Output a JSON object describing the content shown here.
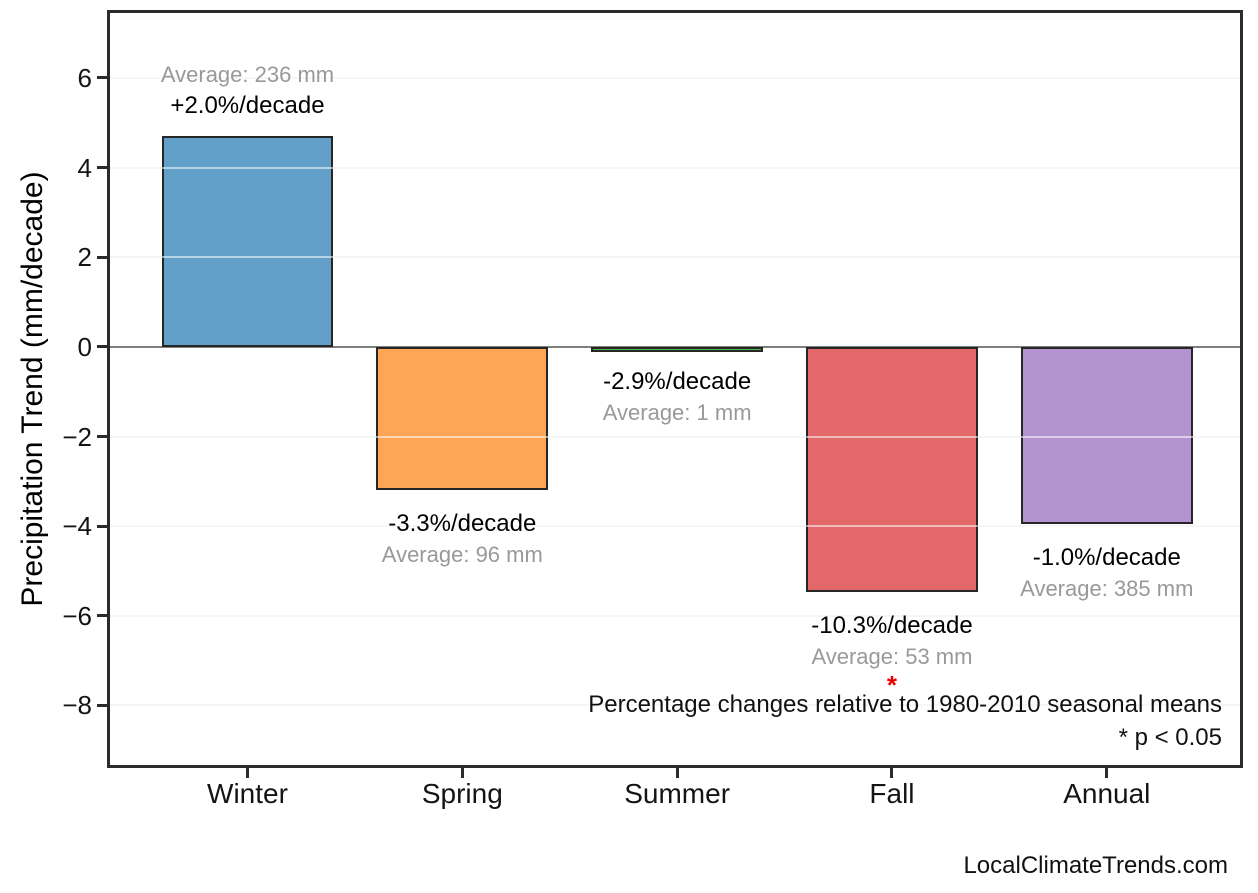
{
  "chart_data": {
    "type": "bar",
    "title": "",
    "xlabel": "",
    "ylabel": "Precipitation Trend (mm/decade)",
    "categories": [
      "Winter",
      "Spring",
      "Summer",
      "Fall",
      "Annual"
    ],
    "values": [
      4.71,
      -3.2,
      -0.03,
      -5.47,
      -3.96
    ],
    "bar_colors": [
      "#62A0CA",
      "#FFA556",
      "#4FBC4F",
      "#E26869",
      "#B494D0"
    ],
    "bar_edge_color": "#262626",
    "ylim": [
      -9.33,
      7.45
    ],
    "xlim": [
      -0.64,
      4.62
    ],
    "bar_width": 0.8,
    "yticks": [
      6,
      4,
      2,
      0,
      -2,
      -4,
      -6,
      -8
    ],
    "ytick_labels": [
      "6",
      "4",
      "2",
      "0",
      "−2",
      "−4",
      "−6",
      "−8"
    ],
    "grid": "horizontal",
    "legend": "none",
    "zero_line_color": "#7f7f7f",
    "annotations": [
      {
        "category": "Winter",
        "trend_label": "+2.0%/decade",
        "average_label": "Average: 236 mm",
        "position": "above",
        "significant": false
      },
      {
        "category": "Spring",
        "trend_label": "-3.3%/decade",
        "average_label": "Average: 96 mm",
        "position": "below",
        "significant": false
      },
      {
        "category": "Summer",
        "trend_label": "-2.9%/decade",
        "average_label": "Average: 1 mm",
        "position": "below",
        "significant": false
      },
      {
        "category": "Fall",
        "trend_label": "-10.3%/decade",
        "average_label": "Average: 53 mm",
        "position": "below",
        "significant": true
      },
      {
        "category": "Annual",
        "trend_label": "-1.0%/decade",
        "average_label": "Average: 385 mm",
        "position": "below",
        "significant": false
      }
    ],
    "significance_marker": "*",
    "significance_color": "#ee0000",
    "footnote_line1": "Percentage changes relative to 1980-2010 seasonal means",
    "footnote_line2": "* p < 0.05",
    "watermark": "LocalClimateTrends.com"
  }
}
